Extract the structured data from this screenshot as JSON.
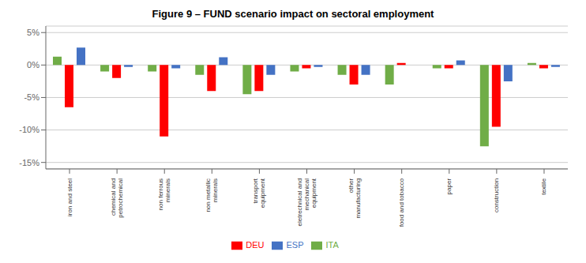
{
  "chart_data": {
    "type": "bar",
    "title": "Figure 9 – FUND scenario impact on sectoral employment",
    "categories": [
      "iron and steel",
      "chemical and\npetrochemical",
      "non ferrous\nminerals",
      "non metallic\nminerals",
      "transport\nequipment",
      "eletrechnical and\nmechanical\nequipment",
      "other\nmanufacturing",
      "food and tobacco",
      "paper",
      "construction",
      "textile"
    ],
    "series": [
      {
        "name": "ITA",
        "color": "#70ad47",
        "values": [
          1.3,
          -1.0,
          -1.0,
          -1.5,
          -4.5,
          -1.0,
          -1.5,
          -3.0,
          -0.5,
          -12.5,
          0.3
        ]
      },
      {
        "name": "DEU",
        "color": "#ff0000",
        "values": [
          -6.5,
          -2.0,
          -11.0,
          -4.0,
          -4.0,
          -0.5,
          -3.0,
          0.3,
          -0.5,
          -9.5,
          -0.5
        ]
      },
      {
        "name": "ESP",
        "color": "#4472c4",
        "values": [
          2.7,
          -0.3,
          -0.5,
          1.2,
          -1.5,
          -0.3,
          -1.5,
          0.0,
          0.7,
          -2.5,
          -0.3
        ]
      }
    ],
    "ylim": [
      -16,
      6
    ],
    "yticks": [
      {
        "value": 5,
        "label": "5%"
      },
      {
        "value": 0,
        "label": "0%"
      },
      {
        "value": -5,
        "label": "-5%"
      },
      {
        "value": -10,
        "label": "-10%"
      },
      {
        "value": -15,
        "label": "-15%"
      }
    ],
    "grid": true,
    "legend": "bottom"
  }
}
